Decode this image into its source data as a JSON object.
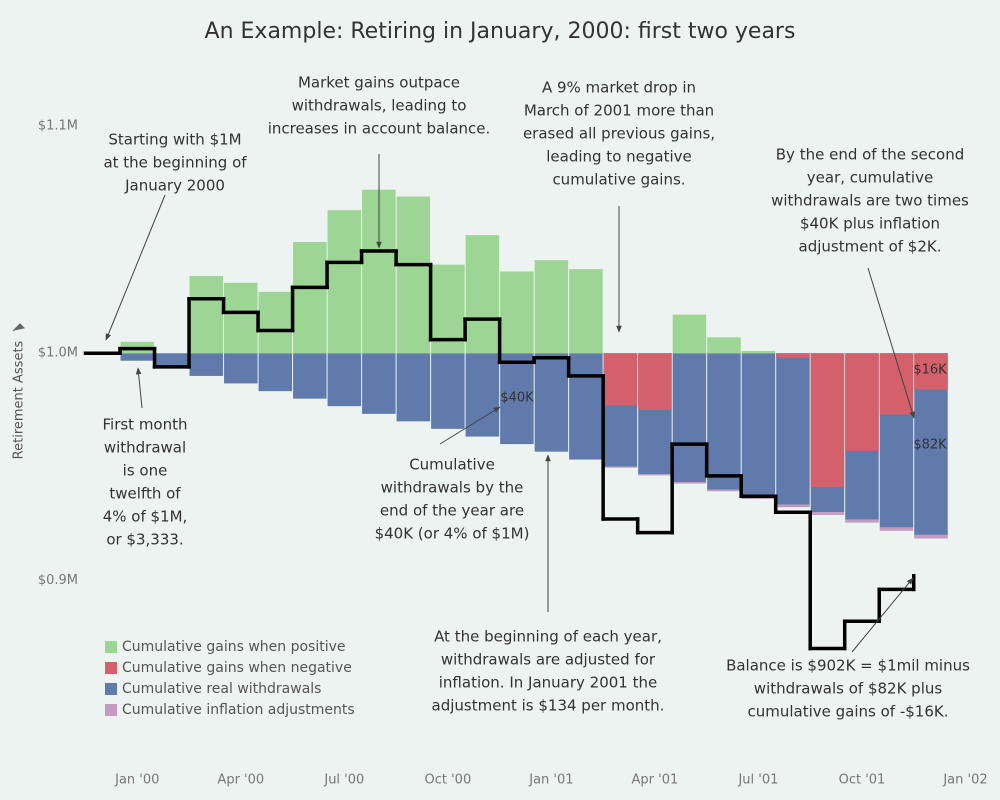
{
  "chart_data": {
    "type": "bar",
    "title": "An Example: Retiring in January, 2000: first two years",
    "y_label": "Retirement Assets",
    "base": 1,
    "ylim": [
      0.82,
      1.13
    ],
    "yticks": [
      {
        "value": 0.9,
        "label": "$0.9M"
      },
      {
        "value": 1,
        "label": "$1.0M"
      },
      {
        "value": 1.1,
        "label": "$1.1M"
      }
    ],
    "xlim": [
      -1.66,
      24.71
    ],
    "xticks": [
      {
        "value": 0,
        "label": "Jan '00"
      },
      {
        "value": 3,
        "label": "Apr '00"
      },
      {
        "value": 6,
        "label": "Jul '00"
      },
      {
        "value": 9,
        "label": "Oct '00"
      },
      {
        "value": 12,
        "label": "Jan '01"
      },
      {
        "value": 15,
        "label": "Apr '01"
      },
      {
        "value": 18,
        "label": "Jul '01"
      },
      {
        "value": 21,
        "label": "Oct '01"
      },
      {
        "value": 24,
        "label": "Jan '02"
      }
    ],
    "x": [
      0,
      1,
      2,
      3,
      4,
      5,
      6,
      7,
      8,
      9,
      10,
      11,
      12,
      13,
      14,
      15,
      16,
      17,
      18,
      19,
      20,
      21,
      22,
      23
    ],
    "series": [
      {
        "name": "Cumulative gains when positive",
        "color": "#9dd594",
        "values": [
          0.005,
          null,
          0.034,
          0.031,
          0.027,
          0.049,
          0.063,
          0.072,
          0.069,
          0.039,
          0.052,
          0.036,
          0.041,
          0.037,
          null,
          null,
          0.017,
          0.007,
          0.001,
          null,
          null,
          null,
          null,
          null
        ]
      },
      {
        "name": "Cumulative gains when negative",
        "color": "#d3606a",
        "values": [
          null,
          null,
          null,
          null,
          null,
          null,
          null,
          null,
          null,
          null,
          null,
          null,
          null,
          null,
          -0.023,
          -0.025,
          null,
          null,
          null,
          -0.002,
          -0.059,
          -0.043,
          -0.027,
          -0.016
        ]
      },
      {
        "name": "Cumulative real withdrawals",
        "color": "#5f7aab",
        "values": [
          -0.0033,
          -0.0067,
          -0.01,
          -0.0133,
          -0.0167,
          -0.02,
          -0.0233,
          -0.0267,
          -0.03,
          -0.0333,
          -0.0367,
          -0.04,
          -0.0433,
          -0.0467,
          -0.05,
          -0.0533,
          -0.0567,
          -0.06,
          -0.0633,
          -0.0667,
          -0.07,
          -0.0733,
          -0.0767,
          -0.08
        ]
      },
      {
        "name": "Cumulative inflation adjustments",
        "color": "#c49ac0",
        "values": [
          null,
          null,
          null,
          null,
          null,
          null,
          null,
          null,
          null,
          null,
          null,
          null,
          -0.0001,
          -0.0003,
          -0.0004,
          -0.0005,
          -0.0007,
          -0.0008,
          -0.0009,
          -0.0011,
          -0.0012,
          -0.0013,
          -0.0015,
          -0.0016
        ]
      }
    ],
    "balance": {
      "color": "#000000",
      "x": [
        -1.5,
        -0.5,
        0.5,
        1.5,
        2.5,
        3.5,
        4.5,
        5.5,
        6.5,
        7.5,
        8.5,
        9.5,
        10.5,
        11.5,
        12.5,
        13.5,
        14.5,
        15.5,
        16.5,
        17.5,
        18.5,
        19.5,
        20.5,
        21.5,
        22.5
      ],
      "values": [
        1,
        1.002,
        0.994,
        1.024,
        1.018,
        1.01,
        1.029,
        1.04,
        1.045,
        1.039,
        1.006,
        1.015,
        0.996,
        0.998,
        0.99,
        0.927,
        0.921,
        0.96,
        0.946,
        0.937,
        0.93,
        0.87,
        0.882,
        0.896,
        0.902
      ]
    },
    "legend": "lower left",
    "annotations": [
      {
        "lines": [
          "Starting with $1M",
          "at the beginning of",
          "January 2000"
        ]
      },
      {
        "lines": [
          "Market gains outpace",
          "withdrawals, leading to",
          "increases in account balance."
        ]
      },
      {
        "lines": [
          "A 9% market drop in",
          "March of 2001 more than",
          "erased all previous gains,",
          "leading to negative",
          "cumulative gains."
        ]
      },
      {
        "lines": [
          "By the end of the second",
          "year, cumulative",
          "withdrawals are two times",
          "$40K plus inflation",
          "adjustment of $2K."
        ]
      },
      {
        "lines": [
          "First month",
          "withdrawal",
          "is one",
          "twelfth of",
          "4% of $1M,",
          "or $3,333."
        ]
      },
      {
        "lines": [
          "Cumulative",
          "withdrawals by the",
          "end of the year are",
          "$40K (or 4% of $1M)"
        ]
      },
      {
        "lines": [
          "At the beginning of each year,",
          "withdrawals are adjusted for",
          "inflation. In January 2001 the",
          "adjustment is $134 per month."
        ]
      },
      {
        "lines": [
          "Balance is  $902K = $1mil minus",
          "withdrawals of $82K plus",
          "cumulative gains of -$16K."
        ]
      },
      {
        "lines": [
          "$40K"
        ]
      },
      {
        "lines": [
          "$16K"
        ]
      },
      {
        "lines": [
          "$82K"
        ]
      }
    ]
  }
}
